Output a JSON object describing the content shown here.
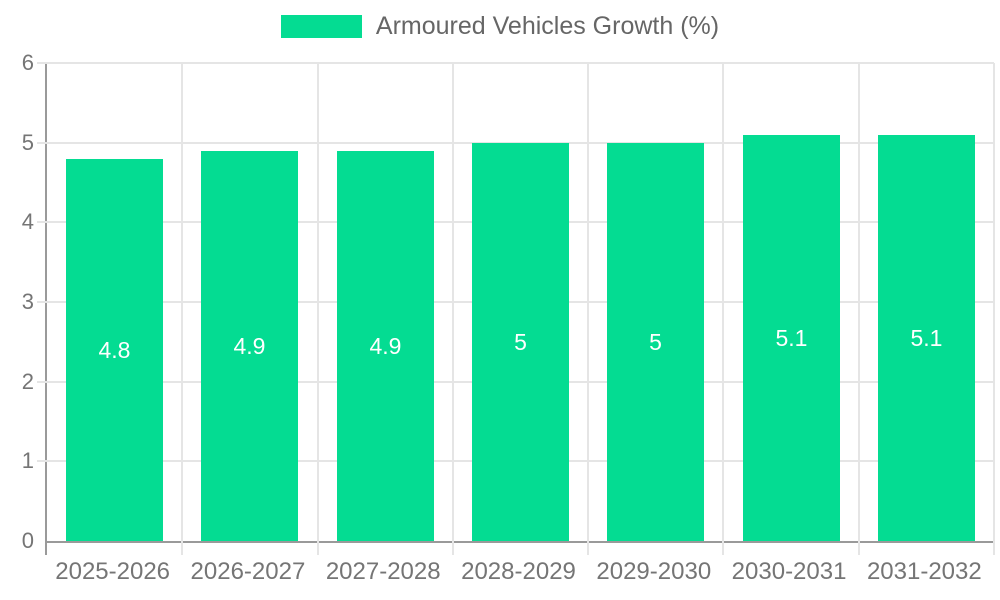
{
  "legend": {
    "label": "Armoured Vehicles Growth (%)"
  },
  "colors": {
    "bar": "#04dc92",
    "axis_line": "#9a9a9a",
    "gridline": "#e5e5e5",
    "tick_text": "#757575",
    "legend_text": "#666666",
    "value_label_text": "#ffffff",
    "background": "#ffffff"
  },
  "chart_data": {
    "type": "bar",
    "title": "",
    "xlabel": "",
    "ylabel": "",
    "categories": [
      "2025-2026",
      "2026-2027",
      "2027-2028",
      "2028-2029",
      "2029-2030",
      "2030-2031",
      "2031-2032"
    ],
    "series": [
      {
        "name": "Armoured Vehicles Growth (%)",
        "values": [
          4.8,
          4.9,
          4.9,
          5,
          5,
          5.1,
          5.1
        ]
      }
    ],
    "value_labels": [
      "4.8",
      "4.9",
      "4.9",
      "5",
      "5",
      "5.1",
      "5.1"
    ],
    "ylim": [
      0,
      6
    ],
    "yticks": [
      "0",
      "1",
      "2",
      "3",
      "4",
      "5",
      "6"
    ],
    "grid": true,
    "legend_position": "top",
    "value_label_position": "center-of-bar"
  }
}
